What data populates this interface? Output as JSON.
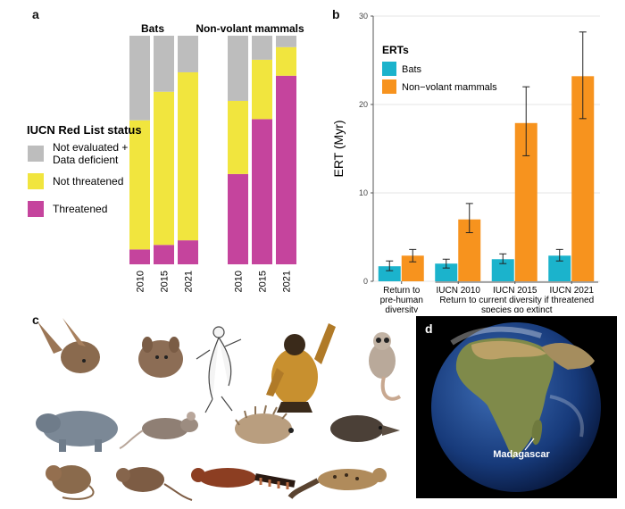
{
  "panels": {
    "a": "a",
    "b": "b",
    "c": "c",
    "d": "d"
  },
  "chart_data": [
    {
      "panel": "a",
      "type": "bar",
      "stacked": true,
      "normalized": true,
      "groups": [
        "Bats",
        "Non-volant mammals"
      ],
      "categories": [
        "2010",
        "2015",
        "2021"
      ],
      "legend_title": "IUCN Red List status",
      "legend_position": "left",
      "series": [
        {
          "name": "Threatened",
          "color": "#c5449d",
          "values": {
            "Bats": [
              0.065,
              0.085,
              0.105
            ],
            "Non-volant mammals": [
              0.395,
              0.635,
              0.825
            ]
          }
        },
        {
          "name": "Not threatened",
          "color": "#f1e53e",
          "values": {
            "Bats": [
              0.565,
              0.67,
              0.735
            ],
            "Non-volant mammals": [
              0.32,
              0.26,
              0.125
            ]
          }
        },
        {
          "name": "Not evaluated + Data deficient",
          "name_lines": [
            "Not evaluated +",
            "Data deficient"
          ],
          "color": "#bdbdbd",
          "values": {
            "Bats": [
              0.37,
              0.245,
              0.16
            ],
            "Non-volant mammals": [
              0.285,
              0.105,
              0.05
            ]
          }
        }
      ],
      "legend_order": [
        "Not evaluated + Data deficient",
        "Not threatened",
        "Threatened"
      ]
    },
    {
      "panel": "b",
      "type": "bar",
      "ylabel": "ERT (Myr)",
      "ylim": [
        0,
        30
      ],
      "yticks": [
        0,
        10,
        20,
        30
      ],
      "grid": true,
      "legend_title": "ERTs",
      "legend_position": "top-left",
      "categories": [
        "Return to pre-human diversity",
        "IUCN 2010",
        "IUCN 2015",
        "IUCN 2021"
      ],
      "category_lines": [
        [
          "Return to",
          "pre-human",
          "diversity"
        ],
        [
          "IUCN 2010"
        ],
        [
          "IUCN 2015"
        ],
        [
          "IUCN 2021"
        ]
      ],
      "group_caption_lines": [
        "Return to current diversity if threatened",
        "species go extinct"
      ],
      "series": [
        {
          "name": "Bats",
          "color": "#1bb3cc",
          "values": [
            1.7,
            2.0,
            2.5,
            2.9
          ],
          "err_low": [
            1.2,
            1.5,
            2.0,
            2.3
          ],
          "err_high": [
            2.3,
            2.5,
            3.1,
            3.6
          ]
        },
        {
          "name": "Non−volant mammals",
          "color": "#f7931e",
          "values": [
            2.9,
            7.0,
            17.9,
            23.2
          ],
          "err_low": [
            2.2,
            5.5,
            14.2,
            18.4
          ],
          "err_high": [
            3.6,
            8.8,
            22.0,
            28.2
          ]
        }
      ]
    }
  ],
  "panel_d": {
    "label": "Madagascar"
  }
}
